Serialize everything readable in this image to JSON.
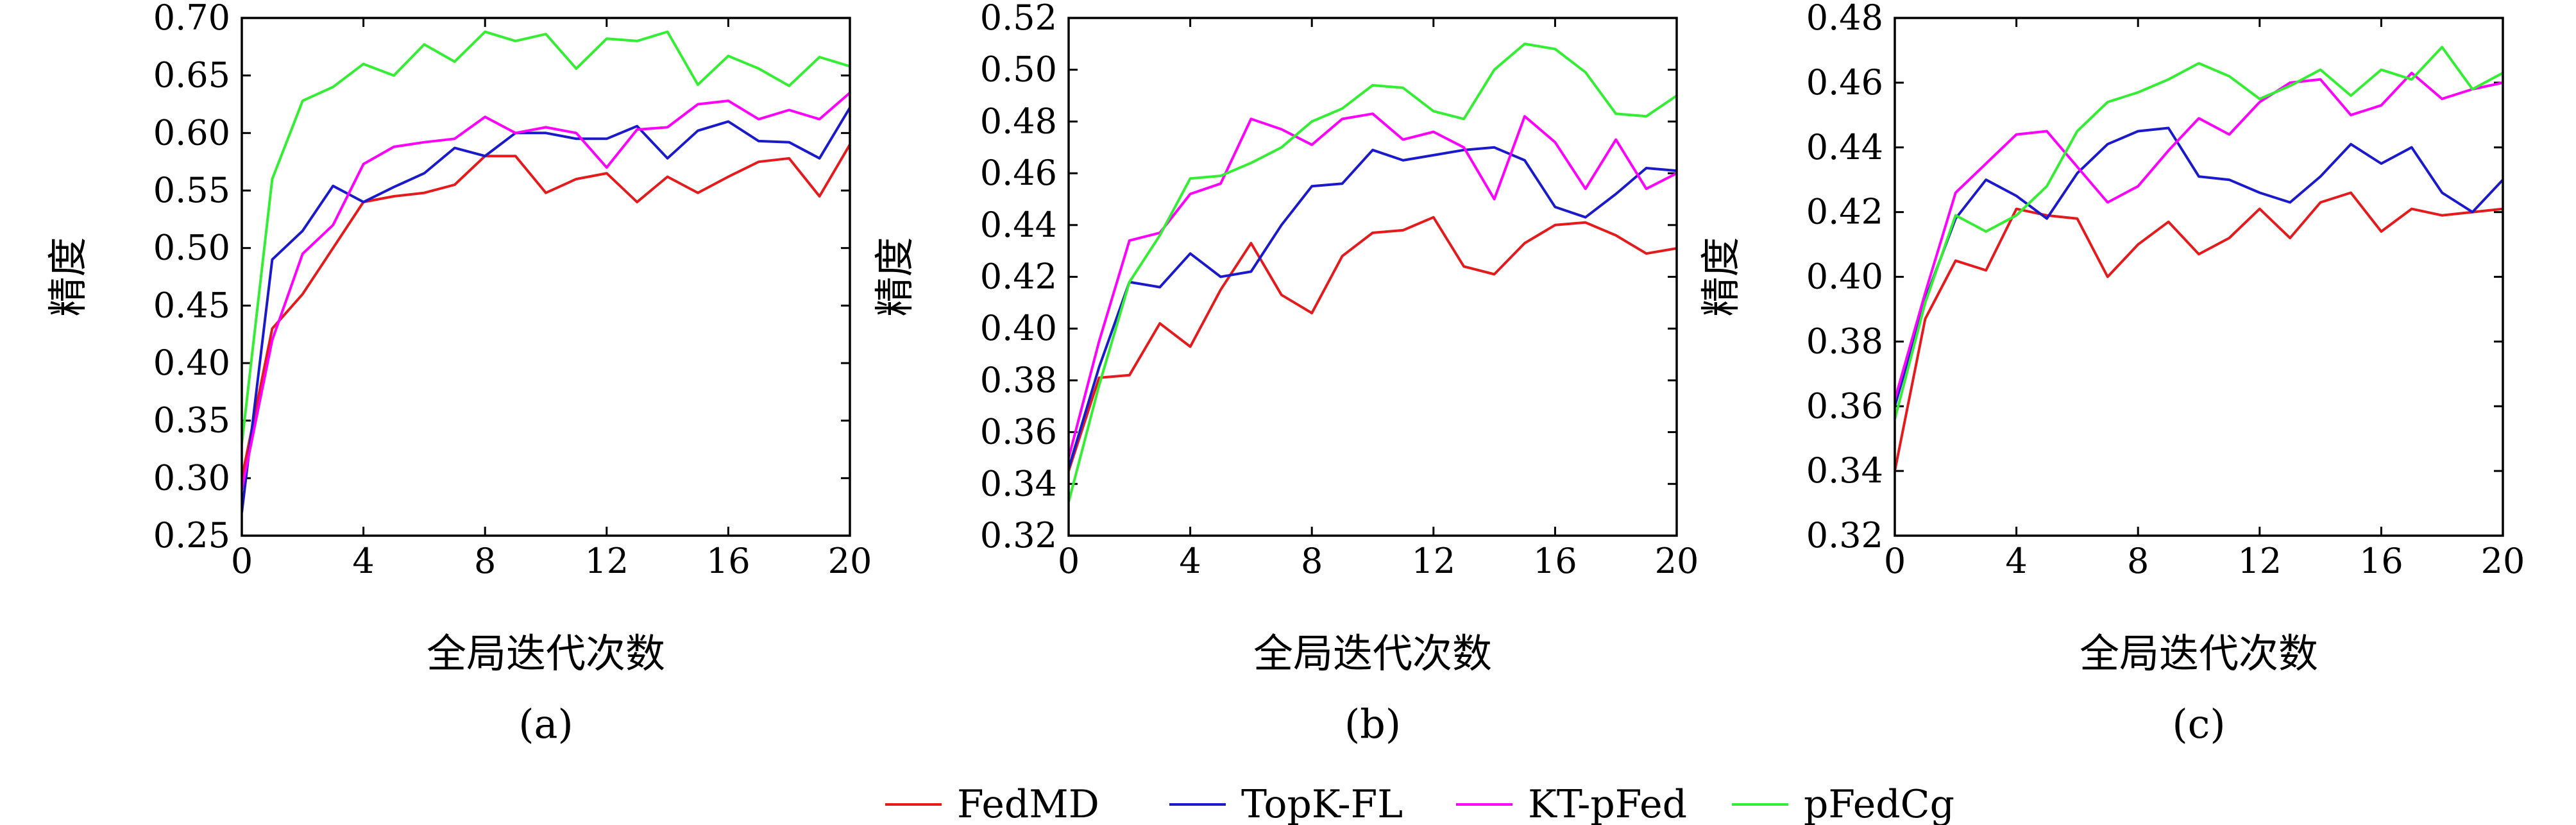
{
  "charts": [
    {
      "sublabel": "(a)",
      "xlabel": "全局迭代次数",
      "ylabel": "精度",
      "xlim": [
        0,
        20
      ],
      "ylim": [
        0.25,
        0.7
      ],
      "xticks": [
        0,
        4,
        8,
        12,
        16,
        20
      ],
      "yticks": [
        "0.25",
        "0.30",
        "0.35",
        "0.40",
        "0.45",
        "0.50",
        "0.55",
        "0.60",
        "0.65",
        "0.70"
      ]
    },
    {
      "sublabel": "(b)",
      "xlabel": "全局迭代次数",
      "ylabel": "精度",
      "xlim": [
        0,
        20
      ],
      "ylim": [
        0.32,
        0.52
      ],
      "xticks": [
        0,
        4,
        8,
        12,
        16,
        20
      ],
      "yticks": [
        "0.32",
        "0.34",
        "0.36",
        "0.38",
        "0.40",
        "0.42",
        "0.44",
        "0.46",
        "0.48",
        "0.50",
        "0.52"
      ]
    },
    {
      "sublabel": "(c)",
      "xlabel": "全局迭代次数",
      "ylabel": "精度",
      "xlim": [
        0,
        20
      ],
      "ylim": [
        0.32,
        0.48
      ],
      "xticks": [
        0,
        4,
        8,
        12,
        16,
        20
      ],
      "yticks": [
        "0.32",
        "0.34",
        "0.36",
        "0.38",
        "0.40",
        "0.42",
        "0.44",
        "0.46",
        "0.48"
      ]
    }
  ],
  "legend": {
    "position": "bottom-center",
    "items": [
      {
        "name": "FedMD",
        "color": "#e41a1c"
      },
      {
        "name": "TopK-FL",
        "color": "#1a1acc"
      },
      {
        "name": "KT-pFed",
        "color": "#ff00ff"
      },
      {
        "name": "pFedCg",
        "color": "#33ee33"
      }
    ]
  },
  "chart_data": [
    {
      "type": "line",
      "title": "",
      "xlabel": "全局迭代次数",
      "ylabel": "精度",
      "xlim": [
        0,
        20
      ],
      "ylim": [
        0.25,
        0.7
      ],
      "x": [
        0,
        1,
        2,
        3,
        4,
        5,
        6,
        7,
        8,
        9,
        10,
        11,
        12,
        13,
        14,
        15,
        16,
        17,
        18,
        19,
        20
      ],
      "series": [
        {
          "name": "FedMD",
          "color": "#e41a1c",
          "values": [
            0.3,
            0.43,
            0.46,
            0.5,
            0.54,
            0.545,
            0.548,
            0.555,
            0.58,
            0.58,
            0.548,
            0.56,
            0.565,
            0.54,
            0.562,
            0.548,
            0.562,
            0.575,
            0.578,
            0.545,
            0.59
          ]
        },
        {
          "name": "TopK-FL",
          "color": "#1a1acc",
          "values": [
            0.27,
            0.49,
            0.515,
            0.554,
            0.54,
            0.553,
            0.565,
            0.587,
            0.58,
            0.6,
            0.6,
            0.595,
            0.595,
            0.606,
            0.578,
            0.602,
            0.61,
            0.593,
            0.592,
            0.578,
            0.622
          ]
        },
        {
          "name": "KT-pFed",
          "color": "#ff00ff",
          "values": [
            0.29,
            0.42,
            0.495,
            0.52,
            0.573,
            0.588,
            0.592,
            0.595,
            0.614,
            0.6,
            0.605,
            0.6,
            0.57,
            0.603,
            0.605,
            0.625,
            0.628,
            0.612,
            0.62,
            0.612,
            0.635
          ]
        },
        {
          "name": "pFedCg",
          "color": "#33ee33",
          "values": [
            0.33,
            0.56,
            0.628,
            0.64,
            0.66,
            0.65,
            0.677,
            0.662,
            0.688,
            0.68,
            0.686,
            0.656,
            0.682,
            0.68,
            0.688,
            0.642,
            0.667,
            0.656,
            0.641,
            0.666,
            0.658
          ]
        }
      ]
    },
    {
      "type": "line",
      "title": "",
      "xlabel": "全局迭代次数",
      "ylabel": "精度",
      "xlim": [
        0,
        20
      ],
      "ylim": [
        0.32,
        0.52
      ],
      "x": [
        0,
        1,
        2,
        3,
        4,
        5,
        6,
        7,
        8,
        9,
        10,
        11,
        12,
        13,
        14,
        15,
        16,
        17,
        18,
        19,
        20
      ],
      "series": [
        {
          "name": "FedMD",
          "color": "#e41a1c",
          "values": [
            0.345,
            0.381,
            0.382,
            0.402,
            0.393,
            0.415,
            0.433,
            0.413,
            0.406,
            0.428,
            0.437,
            0.438,
            0.443,
            0.424,
            0.421,
            0.433,
            0.44,
            0.441,
            0.436,
            0.429,
            0.431
          ]
        },
        {
          "name": "TopK-FL",
          "color": "#1a1acc",
          "values": [
            0.346,
            0.385,
            0.418,
            0.416,
            0.429,
            0.42,
            0.422,
            0.44,
            0.455,
            0.456,
            0.469,
            0.465,
            0.467,
            0.469,
            0.47,
            0.465,
            0.447,
            0.443,
            0.452,
            0.462,
            0.461
          ]
        },
        {
          "name": "KT-pFed",
          "color": "#ff00ff",
          "values": [
            0.35,
            0.395,
            0.434,
            0.437,
            0.452,
            0.456,
            0.481,
            0.477,
            0.471,
            0.481,
            0.483,
            0.473,
            0.476,
            0.47,
            0.45,
            0.482,
            0.472,
            0.454,
            0.473,
            0.454,
            0.46
          ]
        },
        {
          "name": "pFedCg",
          "color": "#33ee33",
          "values": [
            0.333,
            0.378,
            0.418,
            0.436,
            0.458,
            0.459,
            0.464,
            0.47,
            0.48,
            0.485,
            0.494,
            0.493,
            0.484,
            0.481,
            0.5,
            0.51,
            0.508,
            0.499,
            0.483,
            0.482,
            0.49
          ]
        }
      ]
    },
    {
      "type": "line",
      "title": "",
      "xlabel": "全局迭代次数",
      "ylabel": "精度",
      "xlim": [
        0,
        20
      ],
      "ylim": [
        0.32,
        0.48
      ],
      "x": [
        0,
        1,
        2,
        3,
        4,
        5,
        6,
        7,
        8,
        9,
        10,
        11,
        12,
        13,
        14,
        15,
        16,
        17,
        18,
        19,
        20
      ],
      "series": [
        {
          "name": "FedMD",
          "color": "#e41a1c",
          "values": [
            0.34,
            0.387,
            0.405,
            0.402,
            0.421,
            0.419,
            0.418,
            0.4,
            0.41,
            0.417,
            0.407,
            0.412,
            0.421,
            0.412,
            0.423,
            0.426,
            0.414,
            0.421,
            0.419,
            0.42,
            0.421
          ]
        },
        {
          "name": "TopK-FL",
          "color": "#1a1acc",
          "values": [
            0.36,
            0.393,
            0.418,
            0.43,
            0.425,
            0.418,
            0.432,
            0.441,
            0.445,
            0.446,
            0.431,
            0.43,
            0.426,
            0.423,
            0.431,
            0.441,
            0.435,
            0.44,
            0.426,
            0.42,
            0.43
          ]
        },
        {
          "name": "KT-pFed",
          "color": "#ff00ff",
          "values": [
            0.362,
            0.395,
            0.426,
            0.435,
            0.444,
            0.445,
            0.434,
            0.423,
            0.428,
            0.439,
            0.449,
            0.444,
            0.454,
            0.46,
            0.461,
            0.45,
            0.453,
            0.463,
            0.455,
            0.458,
            0.46
          ]
        },
        {
          "name": "pFedCg",
          "color": "#33ee33",
          "values": [
            0.356,
            0.392,
            0.419,
            0.414,
            0.419,
            0.428,
            0.445,
            0.454,
            0.457,
            0.461,
            0.466,
            0.462,
            0.455,
            0.459,
            0.464,
            0.456,
            0.464,
            0.461,
            0.471,
            0.458,
            0.463
          ]
        }
      ]
    }
  ]
}
